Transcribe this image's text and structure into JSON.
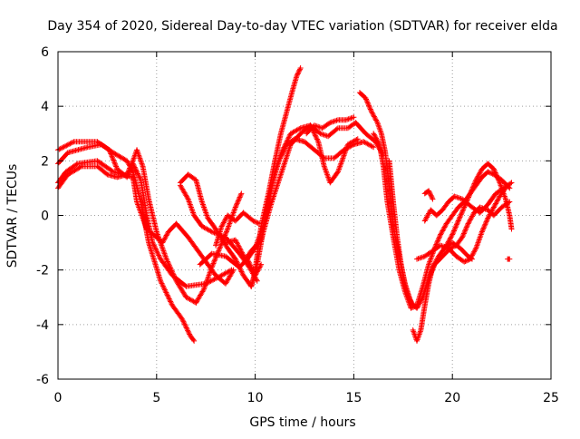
{
  "chart_data": {
    "type": "scatter",
    "title": "Day 354 of 2020, Sidereal Day-to-day VTEC variation (SDTVAR) for receiver elda",
    "xlabel": "GPS time / hours",
    "ylabel": "SDTVAR / TECUs",
    "xlim": [
      0,
      25
    ],
    "ylim": [
      -6,
      6
    ],
    "x_ticks": [
      0,
      5,
      10,
      15,
      20,
      25
    ],
    "x_tick_labels": [
      "0",
      "5",
      "10",
      "15",
      "20",
      "25"
    ],
    "y_ticks": [
      -6,
      -4,
      -2,
      0,
      2,
      4,
      6
    ],
    "y_tick_labels": [
      "-6",
      "-4",
      "-2",
      "0",
      "2",
      "4",
      "6"
    ],
    "grid": true,
    "marker": "+",
    "series_color": "#ff0000",
    "series": [
      {
        "name": "track-1",
        "points": [
          [
            0.0,
            2.4
          ],
          [
            0.8,
            2.7
          ],
          [
            2.0,
            2.7
          ],
          [
            2.8,
            2.3
          ],
          [
            3.5,
            2.0
          ],
          [
            3.8,
            1.6
          ],
          [
            4.2,
            0.5
          ],
          [
            4.6,
            -1.0
          ],
          [
            5.2,
            -2.4
          ],
          [
            5.8,
            -3.3
          ],
          [
            6.3,
            -3.8
          ],
          [
            6.7,
            -4.4
          ],
          [
            6.9,
            -4.6
          ]
        ]
      },
      {
        "name": "track-2",
        "points": [
          [
            0.0,
            1.9
          ],
          [
            0.5,
            2.3
          ],
          [
            1.5,
            2.5
          ],
          [
            2.2,
            2.6
          ],
          [
            2.6,
            2.4
          ],
          [
            3.0,
            1.7
          ],
          [
            3.5,
            1.4
          ],
          [
            3.8,
            1.9
          ],
          [
            4.2,
            1.3
          ],
          [
            4.5,
            0.0
          ],
          [
            4.8,
            -1.0
          ],
          [
            5.2,
            -1.6
          ],
          [
            5.8,
            -2.2
          ],
          [
            6.5,
            -2.6
          ],
          [
            7.5,
            -2.5
          ],
          [
            8.3,
            -2.2
          ],
          [
            8.8,
            -2.0
          ]
        ]
      },
      {
        "name": "track-3",
        "points": [
          [
            0.0,
            1.0
          ],
          [
            0.5,
            1.5
          ],
          [
            1.2,
            1.8
          ],
          [
            2.0,
            1.8
          ],
          [
            2.5,
            1.5
          ],
          [
            3.0,
            1.4
          ],
          [
            3.5,
            1.5
          ],
          [
            3.8,
            2.0
          ],
          [
            4.0,
            2.4
          ],
          [
            4.3,
            1.8
          ],
          [
            4.6,
            0.6
          ],
          [
            5.0,
            -0.6
          ],
          [
            5.5,
            -1.6
          ],
          [
            6.0,
            -2.4
          ],
          [
            6.5,
            -3.0
          ],
          [
            7.0,
            -3.2
          ]
        ]
      },
      {
        "name": "track-4",
        "points": [
          [
            0.0,
            1.2
          ],
          [
            0.4,
            1.6
          ],
          [
            1.0,
            1.9
          ],
          [
            2.0,
            2.0
          ],
          [
            2.8,
            1.6
          ],
          [
            3.3,
            1.5
          ],
          [
            3.8,
            1.4
          ],
          [
            4.0,
            0.5
          ],
          [
            4.5,
            -0.5
          ],
          [
            5.0,
            -0.8
          ],
          [
            5.3,
            -1.0
          ],
          [
            5.6,
            -0.6
          ],
          [
            6.0,
            -0.3
          ],
          [
            6.6,
            -0.8
          ],
          [
            7.3,
            -1.5
          ],
          [
            8.0,
            -2.2
          ],
          [
            8.5,
            -2.5
          ],
          [
            8.9,
            -2.0
          ]
        ]
      },
      {
        "name": "track-5",
        "points": [
          [
            6.2,
            1.2
          ],
          [
            6.6,
            1.5
          ],
          [
            7.0,
            1.3
          ],
          [
            7.3,
            0.5
          ],
          [
            7.6,
            -0.1
          ],
          [
            8.0,
            -0.5
          ],
          [
            8.6,
            -1.2
          ],
          [
            9.0,
            -1.6
          ],
          [
            9.4,
            -2.2
          ],
          [
            9.8,
            -2.6
          ],
          [
            10.0,
            -2.1
          ]
        ]
      },
      {
        "name": "track-6",
        "points": [
          [
            6.2,
            1.1
          ],
          [
            6.6,
            0.6
          ],
          [
            6.9,
            0.0
          ],
          [
            7.3,
            -0.4
          ],
          [
            7.8,
            -0.6
          ],
          [
            8.5,
            -0.8
          ],
          [
            9.2,
            -1.4
          ],
          [
            9.7,
            -1.9
          ],
          [
            10.1,
            -2.4
          ]
        ]
      },
      {
        "name": "track-7",
        "points": [
          [
            7.0,
            -3.2
          ],
          [
            7.4,
            -2.7
          ],
          [
            7.8,
            -1.9
          ],
          [
            8.2,
            -1.2
          ],
          [
            8.6,
            -0.5
          ],
          [
            9.0,
            0.3
          ],
          [
            9.3,
            0.8
          ]
        ]
      },
      {
        "name": "track-8",
        "points": [
          [
            8.0,
            -1.1
          ],
          [
            8.3,
            -0.4
          ],
          [
            8.6,
            0.0
          ],
          [
            9.0,
            -0.2
          ],
          [
            9.4,
            0.1
          ],
          [
            9.9,
            -0.2
          ],
          [
            10.2,
            -0.3
          ]
        ]
      },
      {
        "name": "track-9",
        "points": [
          [
            7.2,
            -1.8
          ],
          [
            7.8,
            -1.4
          ],
          [
            8.5,
            -1.5
          ],
          [
            9.2,
            -1.9
          ],
          [
            9.6,
            -1.6
          ],
          [
            10.0,
            -2.2
          ],
          [
            10.3,
            -1.8
          ]
        ]
      },
      {
        "name": "track-10",
        "points": [
          [
            8.5,
            -1.0
          ],
          [
            9.0,
            -0.9
          ],
          [
            9.5,
            -1.6
          ],
          [
            9.8,
            -1.3
          ],
          [
            10.3,
            -0.9
          ],
          [
            10.8,
            0.4
          ],
          [
            11.3,
            1.5
          ],
          [
            11.8,
            2.6
          ],
          [
            12.3,
            3.0
          ],
          [
            12.8,
            3.3
          ],
          [
            13.2,
            2.7
          ],
          [
            13.5,
            1.8
          ],
          [
            13.8,
            1.2
          ],
          [
            14.2,
            1.6
          ],
          [
            14.7,
            2.6
          ],
          [
            15.2,
            2.8
          ]
        ]
      },
      {
        "name": "track-11",
        "points": [
          [
            9.6,
            -1.6
          ],
          [
            10.0,
            -1.2
          ],
          [
            10.4,
            -0.4
          ],
          [
            10.8,
            1.0
          ],
          [
            11.2,
            2.0
          ],
          [
            11.6,
            2.6
          ],
          [
            12.0,
            2.8
          ],
          [
            12.5,
            2.7
          ],
          [
            13.0,
            2.4
          ],
          [
            13.5,
            2.1
          ],
          [
            14.0,
            2.1
          ],
          [
            14.5,
            2.4
          ],
          [
            15.0,
            2.6
          ],
          [
            15.5,
            2.7
          ],
          [
            16.0,
            2.5
          ]
        ]
      },
      {
        "name": "track-12",
        "points": [
          [
            9.8,
            -2.6
          ],
          [
            10.1,
            -1.8
          ],
          [
            10.4,
            -0.6
          ],
          [
            10.7,
            0.5
          ],
          [
            11.0,
            1.6
          ],
          [
            11.4,
            2.4
          ],
          [
            11.8,
            3.0
          ],
          [
            12.3,
            3.2
          ],
          [
            12.8,
            3.3
          ],
          [
            13.3,
            3.0
          ],
          [
            13.7,
            2.9
          ],
          [
            14.2,
            3.2
          ],
          [
            14.7,
            3.2
          ],
          [
            15.1,
            3.4
          ],
          [
            15.6,
            3.0
          ],
          [
            16.1,
            2.7
          ],
          [
            16.5,
            2.2
          ]
        ]
      },
      {
        "name": "track-13",
        "points": [
          [
            10.0,
            -2.0
          ],
          [
            10.3,
            -0.4
          ],
          [
            10.7,
            0.9
          ],
          [
            11.0,
            2.0
          ],
          [
            11.3,
            3.0
          ],
          [
            11.6,
            3.8
          ],
          [
            11.9,
            4.6
          ],
          [
            12.1,
            5.1
          ],
          [
            12.3,
            5.4
          ]
        ]
      },
      {
        "name": "track-14",
        "points": [
          [
            12.6,
            3.0
          ],
          [
            13.0,
            3.3
          ],
          [
            13.4,
            3.2
          ],
          [
            13.8,
            3.4
          ],
          [
            14.2,
            3.5
          ],
          [
            14.6,
            3.5
          ],
          [
            15.0,
            3.6
          ]
        ]
      },
      {
        "name": "track-15",
        "points": [
          [
            15.3,
            4.5
          ],
          [
            15.6,
            4.3
          ],
          [
            15.9,
            3.8
          ],
          [
            16.2,
            3.4
          ],
          [
            16.4,
            3.0
          ],
          [
            16.6,
            2.3
          ],
          [
            16.8,
            1.0
          ],
          [
            17.0,
            -0.4
          ],
          [
            17.3,
            -1.5
          ],
          [
            17.6,
            -2.5
          ],
          [
            17.9,
            -3.2
          ],
          [
            18.2,
            -3.4
          ],
          [
            18.5,
            -3.0
          ],
          [
            18.8,
            -2.3
          ],
          [
            19.1,
            -1.8
          ],
          [
            19.5,
            -1.5
          ],
          [
            19.9,
            -1.2
          ],
          [
            20.2,
            -1.1
          ],
          [
            20.5,
            -0.8
          ],
          [
            20.8,
            -0.3
          ],
          [
            21.1,
            0.1
          ],
          [
            21.4,
            0.3
          ],
          [
            21.8,
            0.2
          ],
          [
            22.1,
            0.0
          ],
          [
            22.5,
            0.3
          ],
          [
            22.9,
            0.5
          ]
        ]
      },
      {
        "name": "track-16",
        "points": [
          [
            16.0,
            3.0
          ],
          [
            16.3,
            2.6
          ],
          [
            16.5,
            1.8
          ],
          [
            16.7,
            0.5
          ],
          [
            17.0,
            -0.8
          ],
          [
            17.3,
            -2.0
          ],
          [
            17.6,
            -2.8
          ],
          [
            17.9,
            -3.4
          ],
          [
            18.2,
            -3.3
          ],
          [
            18.5,
            -2.6
          ],
          [
            18.8,
            -1.8
          ],
          [
            19.1,
            -1.2
          ],
          [
            19.4,
            -0.7
          ],
          [
            19.7,
            -0.3
          ],
          [
            20.0,
            0.0
          ],
          [
            20.3,
            0.3
          ],
          [
            20.6,
            0.5
          ],
          [
            20.9,
            0.8
          ],
          [
            21.2,
            1.1
          ],
          [
            21.5,
            1.4
          ],
          [
            21.8,
            1.6
          ],
          [
            22.1,
            1.5
          ],
          [
            22.5,
            1.3
          ],
          [
            22.9,
            1.0
          ]
        ]
      },
      {
        "name": "track-17",
        "points": [
          [
            16.8,
            2.0
          ],
          [
            17.0,
            0.5
          ],
          [
            17.2,
            -0.8
          ],
          [
            17.4,
            -1.8
          ],
          [
            17.6,
            -2.6
          ],
          [
            17.8,
            -3.0
          ],
          [
            18.0,
            -3.3
          ]
        ]
      },
      {
        "name": "track-18",
        "points": [
          [
            18.0,
            -4.2
          ],
          [
            18.2,
            -4.6
          ],
          [
            18.4,
            -4.2
          ],
          [
            18.6,
            -3.3
          ],
          [
            18.8,
            -2.5
          ],
          [
            19.0,
            -1.9
          ],
          [
            19.3,
            -1.5
          ],
          [
            19.7,
            -1.1
          ],
          [
            20.0,
            -0.7
          ],
          [
            20.3,
            -0.2
          ],
          [
            20.6,
            0.3
          ],
          [
            20.9,
            0.8
          ],
          [
            21.2,
            1.3
          ],
          [
            21.5,
            1.7
          ],
          [
            21.8,
            1.9
          ],
          [
            22.1,
            1.7
          ],
          [
            22.4,
            1.2
          ],
          [
            22.7,
            0.6
          ],
          [
            22.9,
            0.0
          ],
          [
            23.0,
            -0.5
          ]
        ]
      },
      {
        "name": "track-19",
        "points": [
          [
            18.6,
            -0.2
          ],
          [
            18.9,
            0.2
          ],
          [
            19.2,
            0.0
          ],
          [
            19.5,
            0.2
          ],
          [
            19.8,
            0.5
          ],
          [
            20.1,
            0.7
          ],
          [
            20.5,
            0.6
          ],
          [
            21.0,
            0.3
          ],
          [
            21.4,
            0.1
          ],
          [
            21.8,
            0.4
          ],
          [
            22.2,
            0.8
          ],
          [
            22.6,
            1.0
          ],
          [
            23.0,
            1.2
          ]
        ]
      },
      {
        "name": "track-20",
        "points": [
          [
            18.2,
            -1.6
          ],
          [
            18.6,
            -1.5
          ],
          [
            19.0,
            -1.3
          ],
          [
            19.4,
            -1.1
          ],
          [
            19.8,
            -1.2
          ],
          [
            20.2,
            -1.5
          ],
          [
            20.6,
            -1.7
          ],
          [
            20.9,
            -1.6
          ],
          [
            21.2,
            -1.2
          ],
          [
            21.5,
            -0.6
          ],
          [
            21.8,
            -0.1
          ],
          [
            22.1,
            0.3
          ],
          [
            22.4,
            0.7
          ],
          [
            22.7,
            1.0
          ]
        ]
      },
      {
        "name": "track-21",
        "points": [
          [
            19.6,
            -1.2
          ],
          [
            20.0,
            -1.0
          ],
          [
            20.4,
            -1.2
          ],
          [
            20.8,
            -1.5
          ],
          [
            21.0,
            -1.6
          ]
        ]
      },
      {
        "name": "track-22",
        "points": [
          [
            18.6,
            0.8
          ],
          [
            18.8,
            0.9
          ],
          [
            19.0,
            0.6
          ]
        ]
      },
      {
        "name": "track-23",
        "points": [
          [
            22.8,
            -1.6
          ],
          [
            22.9,
            -1.6
          ]
        ]
      }
    ]
  }
}
